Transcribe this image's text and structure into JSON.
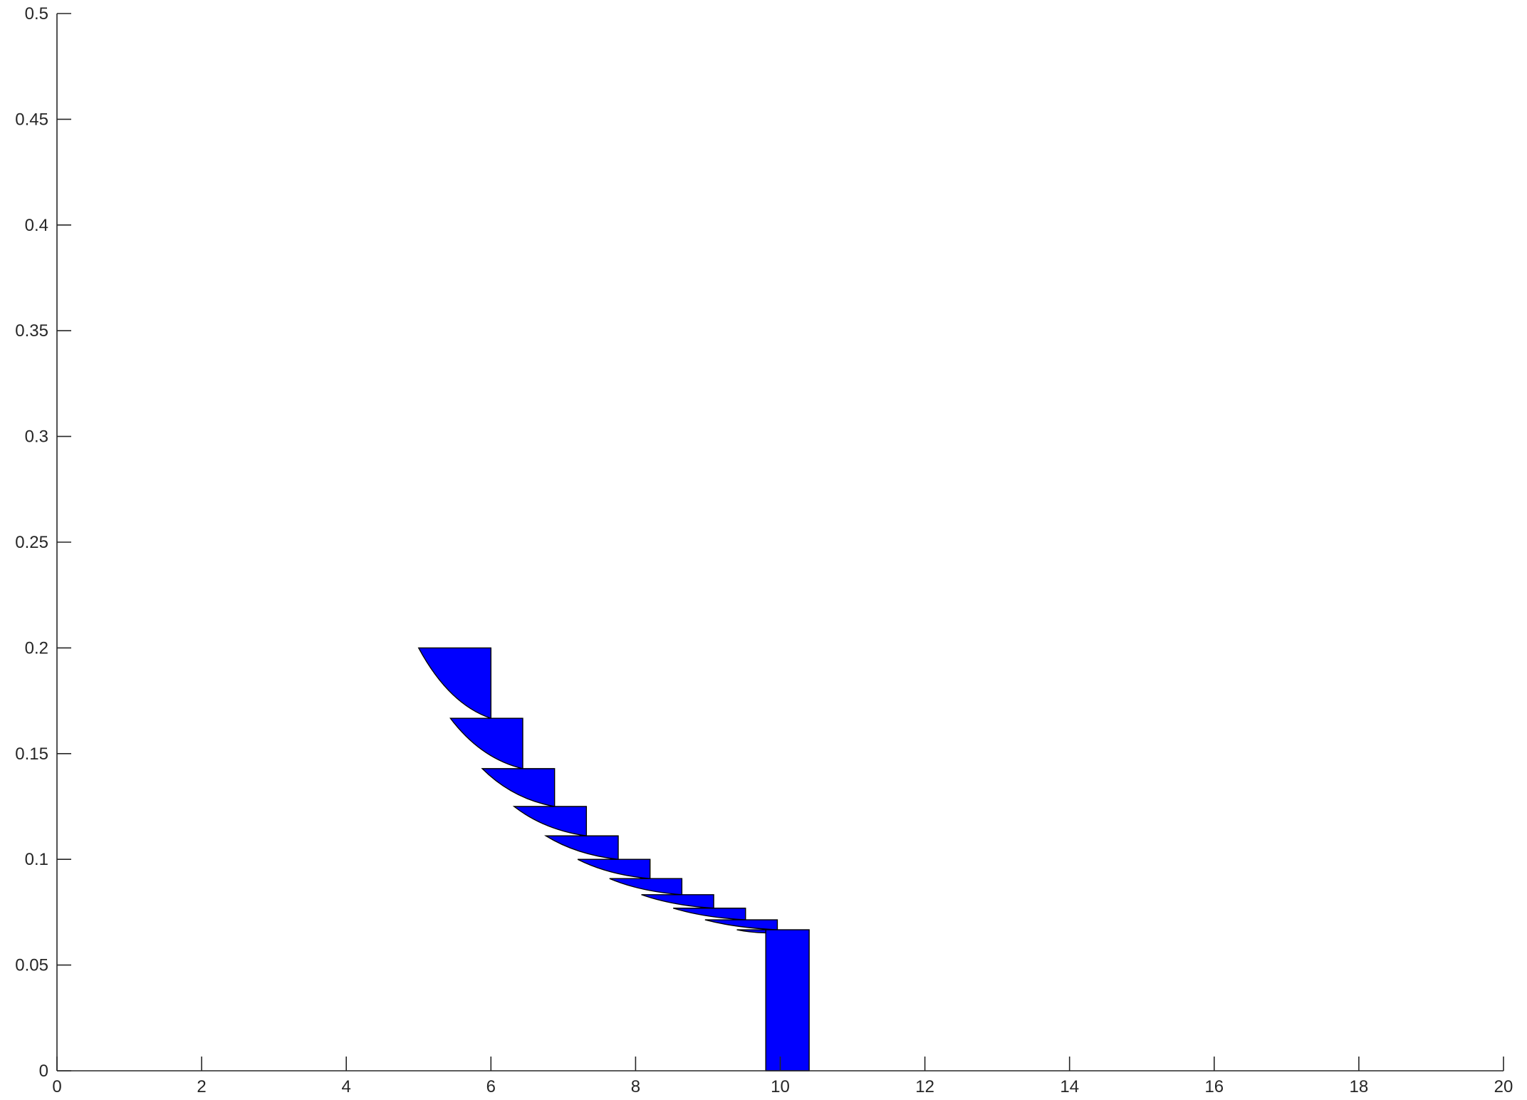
{
  "chart_data": {
    "type": "area",
    "title": "",
    "xlabel": "",
    "ylabel": "",
    "xlim": [
      0,
      20
    ],
    "ylim": [
      0,
      0.5
    ],
    "xticks": [
      "0",
      "2",
      "4",
      "6",
      "8",
      "10",
      "12",
      "14",
      "16",
      "18",
      "20"
    ],
    "yticks": [
      "0",
      "0.05",
      "0.1",
      "0.15",
      "0.2",
      "0.25",
      "0.3",
      "0.35",
      "0.4",
      "0.45",
      "0.5"
    ],
    "grid": false,
    "fill_color": "#0000ff",
    "edge_color": "#000000",
    "wedges": [
      {
        "x_start": 5.0,
        "x_end": 6.0,
        "y_top": 0.2,
        "y_bottom": 0.1667
      },
      {
        "x_start": 5.44,
        "x_end": 6.44,
        "y_top": 0.1667,
        "y_bottom": 0.1429
      },
      {
        "x_start": 5.88,
        "x_end": 6.88,
        "y_top": 0.1429,
        "y_bottom": 0.125
      },
      {
        "x_start": 6.32,
        "x_end": 7.32,
        "y_top": 0.125,
        "y_bottom": 0.1111
      },
      {
        "x_start": 6.76,
        "x_end": 7.76,
        "y_top": 0.1111,
        "y_bottom": 0.1
      },
      {
        "x_start": 7.2,
        "x_end": 8.2,
        "y_top": 0.1,
        "y_bottom": 0.0909
      },
      {
        "x_start": 7.64,
        "x_end": 8.64,
        "y_top": 0.0909,
        "y_bottom": 0.0833
      },
      {
        "x_start": 8.08,
        "x_end": 9.08,
        "y_top": 0.0833,
        "y_bottom": 0.0769
      },
      {
        "x_start": 8.52,
        "x_end": 9.52,
        "y_top": 0.0769,
        "y_bottom": 0.0714
      },
      {
        "x_start": 8.96,
        "x_end": 9.96,
        "y_top": 0.0714,
        "y_bottom": 0.0667
      },
      {
        "x_start": 9.4,
        "x_end": 9.8,
        "y_top": 0.0667,
        "y_bottom": 0.0652
      }
    ],
    "bars": [
      {
        "x_start": 9.8,
        "x_end": 10.4,
        "value": 0.0667
      }
    ]
  }
}
